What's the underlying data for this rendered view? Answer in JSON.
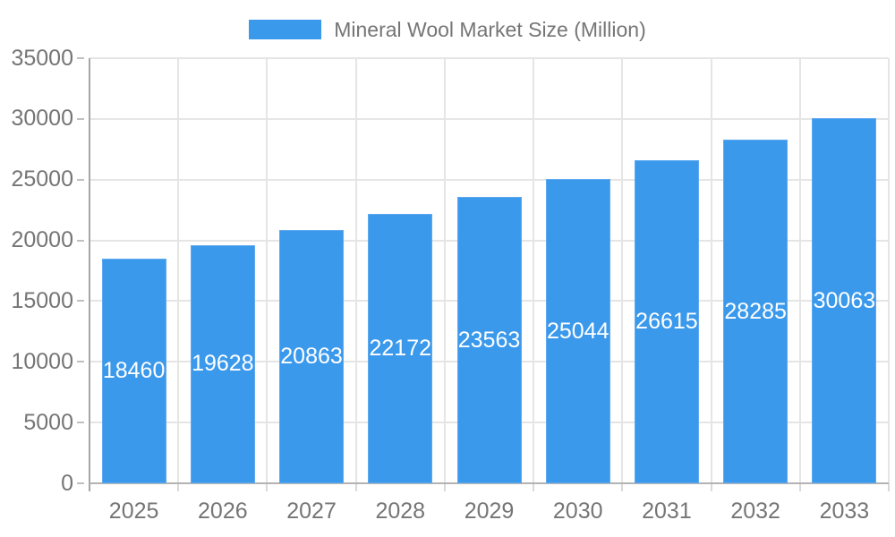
{
  "chart_data": {
    "type": "bar",
    "title": "Mineral Wool Market Size (Million)",
    "categories": [
      "2025",
      "2026",
      "2027",
      "2028",
      "2029",
      "2030",
      "2031",
      "2032",
      "2033"
    ],
    "values": [
      18460,
      19628,
      20863,
      22172,
      23563,
      25044,
      26615,
      28285,
      30063
    ],
    "xlabel": "",
    "ylabel": "",
    "ylim": [
      0,
      35000
    ],
    "ytick_step": 5000,
    "yticks": [
      0,
      5000,
      10000,
      15000,
      20000,
      25000,
      30000,
      35000
    ],
    "grid": true,
    "legend_position": "top",
    "value_labels": "inside-middle",
    "colors": {
      "bar": "#3b99ec",
      "bar_border": "#5fa9ef",
      "value_label": "#ffffff",
      "axis_label": "#757575",
      "legend_text": "#757575",
      "gridline": "#e5e5e5",
      "axis_line": "#a6a6a6"
    }
  },
  "legend": {
    "label": "Mineral Wool Market Size (Million)"
  }
}
